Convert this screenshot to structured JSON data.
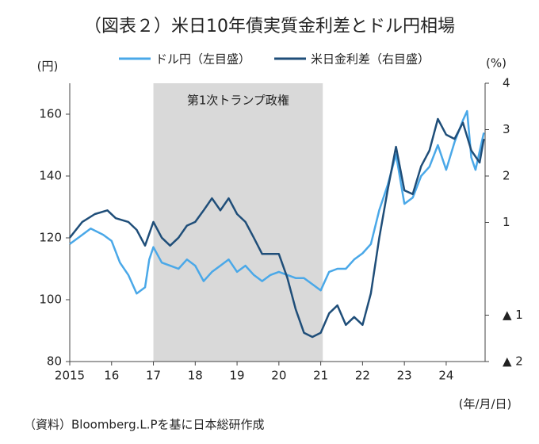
{
  "chart_data": {
    "type": "line",
    "title": "（図表２）米日10年債実質金利差とドル円相場",
    "y_unit": "(円)",
    "y2_unit": "(%)",
    "x_unit": "(年/月/日)",
    "source": "（資料）Bloomberg.L.Pを基に日本総研作成",
    "shade": {
      "x": [
        2017,
        2021.05
      ],
      "label": "第1次トランプ政権",
      "color": "#d9d9d9"
    },
    "xlim": [
      2015,
      2024.93
    ],
    "xticks": [
      2015,
      {
        "value": 2016,
        "label": "16"
      },
      {
        "value": 2017,
        "label": "17"
      },
      {
        "value": 2018,
        "label": "18"
      },
      {
        "value": 2019,
        "label": "19"
      },
      {
        "value": 2020,
        "label": "20"
      },
      {
        "value": 2021,
        "label": "21"
      },
      {
        "value": 2022,
        "label": "22"
      },
      {
        "value": 2023,
        "label": "23"
      },
      {
        "value": 2024,
        "label": "24"
      }
    ],
    "ylim": [
      80,
      170
    ],
    "yticks": [
      80,
      100,
      120,
      140,
      160
    ],
    "y2lim": [
      -2,
      4
    ],
    "y2ticks": [
      4,
      3,
      2,
      1,
      {
        "value": -1,
        "label": "▲ 1"
      },
      {
        "value": -2,
        "label": "▲ 2"
      }
    ],
    "series": [
      {
        "name": "ドル円（左目盛）",
        "color": "#4aa8e8",
        "x": [
          2015.0,
          2015.2,
          2015.5,
          2015.8,
          2016.0,
          2016.2,
          2016.4,
          2016.6,
          2016.8,
          2016.9,
          2017.0,
          2017.2,
          2017.4,
          2017.6,
          2017.8,
          2018.0,
          2018.2,
          2018.4,
          2018.6,
          2018.8,
          2019.0,
          2019.2,
          2019.4,
          2019.6,
          2019.8,
          2020.0,
          2020.2,
          2020.4,
          2020.6,
          2020.8,
          2021.0,
          2021.2,
          2021.4,
          2021.6,
          2021.8,
          2022.0,
          2022.2,
          2022.4,
          2022.6,
          2022.8,
          2023.0,
          2023.2,
          2023.4,
          2023.6,
          2023.8,
          2024.0,
          2024.2,
          2024.4,
          2024.5,
          2024.6,
          2024.7,
          2024.9
        ],
        "values": [
          118,
          120,
          123,
          121,
          119,
          112,
          108,
          102,
          104,
          113,
          117,
          112,
          111,
          110,
          113,
          111,
          106,
          109,
          111,
          113,
          109,
          111,
          108,
          106,
          108,
          109,
          108,
          107,
          107,
          105,
          103,
          109,
          110,
          110,
          113,
          115,
          118,
          129,
          137,
          147,
          131,
          133,
          140,
          143,
          150,
          142,
          151,
          158,
          161,
          146,
          142,
          154
        ]
      },
      {
        "name": "米日金利差（右目盛）",
        "color": "#1f4e79",
        "axis": "y2",
        "x": [
          2015.0,
          2015.3,
          2015.6,
          2015.9,
          2016.1,
          2016.4,
          2016.6,
          2016.8,
          2017.0,
          2017.2,
          2017.4,
          2017.6,
          2017.8,
          2018.0,
          2018.2,
          2018.4,
          2018.6,
          2018.8,
          2019.0,
          2019.2,
          2019.4,
          2019.6,
          2019.8,
          2020.0,
          2020.2,
          2020.4,
          2020.6,
          2020.8,
          2021.0,
          2021.2,
          2021.4,
          2021.6,
          2021.8,
          2022.0,
          2022.2,
          2022.4,
          2022.6,
          2022.8,
          2023.0,
          2023.2,
          2023.4,
          2023.6,
          2023.8,
          2024.0,
          2024.2,
          2024.4,
          2024.6,
          2024.8,
          2024.9
        ],
        "values": [
          0.67,
          1.01,
          1.18,
          1.26,
          1.09,
          1.01,
          0.84,
          0.5,
          1.01,
          0.67,
          0.5,
          0.67,
          0.93,
          1.01,
          1.26,
          1.52,
          1.26,
          1.52,
          1.18,
          1.01,
          0.67,
          0.32,
          0.32,
          0.32,
          -0.19,
          -0.87,
          -1.38,
          -1.47,
          -1.38,
          -0.96,
          -0.79,
          -1.21,
          -1.04,
          -1.21,
          -0.53,
          0.67,
          1.69,
          2.63,
          1.69,
          1.61,
          2.21,
          2.55,
          3.23,
          2.89,
          2.8,
          3.15,
          2.55,
          2.29,
          2.8
        ]
      }
    ]
  }
}
